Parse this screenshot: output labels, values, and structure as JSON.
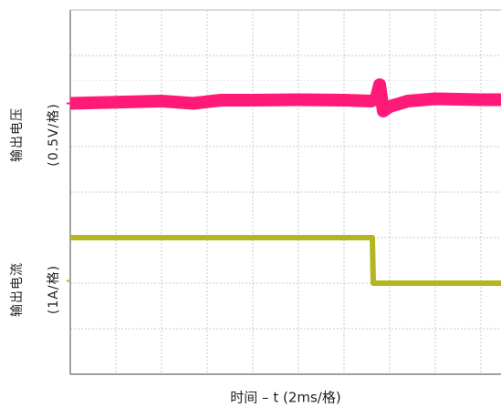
{
  "chart_data": {
    "type": "line",
    "title": "",
    "xlabel": "时间 – t (2ms/格)",
    "x_divisions": 10,
    "y_divisions": 8,
    "grid": true,
    "series": [
      {
        "name": "",
        "color": "#ff1a78",
        "ylabel_line1": "输出电压",
        "ylabel_line2": "(0.5V/格)",
        "trace_div": [
          [
            0,
            2.05
          ],
          [
            2,
            2.0
          ],
          [
            2.7,
            2.05
          ],
          [
            3.3,
            1.98
          ],
          [
            4,
            1.98
          ],
          [
            5,
            1.97
          ],
          [
            6,
            1.98
          ],
          [
            6.6,
            2.0
          ],
          [
            6.7,
            1.95
          ],
          [
            6.78,
            1.64
          ],
          [
            6.86,
            2.22
          ],
          [
            7.0,
            2.12
          ],
          [
            7.4,
            2.0
          ],
          [
            8,
            1.95
          ],
          [
            9,
            1.97
          ],
          [
            10,
            1.97
          ]
        ]
      },
      {
        "name": "",
        "color": "#b3b61e",
        "ylabel_line1": "输出电流",
        "ylabel_line2": "(1A/格)",
        "trace_div": [
          [
            0,
            5.0
          ],
          [
            6.62,
            5.0
          ],
          [
            6.64,
            6.0
          ],
          [
            10,
            6.0
          ]
        ]
      }
    ]
  }
}
